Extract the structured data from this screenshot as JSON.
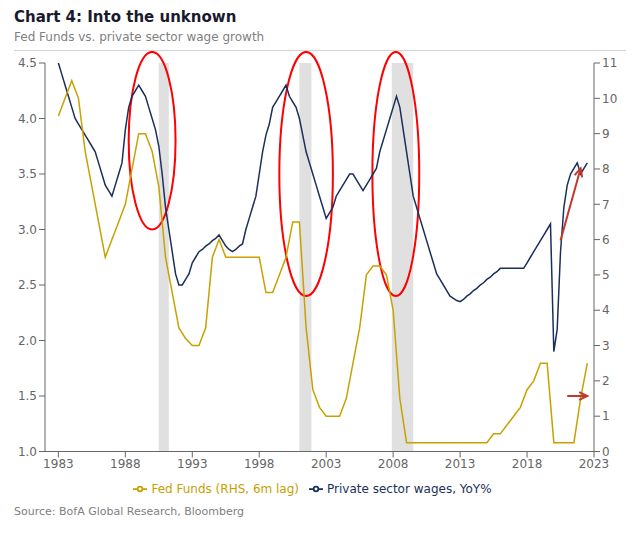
{
  "chart_data": {
    "type": "line",
    "title": "Chart 4: Into the unknown",
    "subtitle": "Fed Funds vs. private sector wage growth",
    "source": "Source: BofA Global Research, Bloomberg",
    "grid": false,
    "xlim": [
      1982,
      2023
    ],
    "xticks": [
      1983,
      1988,
      1993,
      1998,
      2003,
      2008,
      2013,
      2018,
      2023
    ],
    "ylim": [
      1.0,
      4.5
    ],
    "yticks": [
      {
        "value": 1.0,
        "label": "1.0"
      },
      1.5,
      {
        "value": 2.0,
        "label": "2.0"
      },
      2.5,
      {
        "value": 3.0,
        "label": "3.0"
      },
      3.5,
      {
        "value": 4.0,
        "label": "4.0"
      },
      4.5
    ],
    "y2lim": [
      0,
      11
    ],
    "y2ticks": [
      0,
      1,
      2,
      3,
      4,
      5,
      6,
      7,
      8,
      9,
      10,
      11
    ],
    "recession_bands": {
      "color": "lightgray",
      "ranges": [
        [
          1990.5,
          1991.25
        ],
        [
          2001.0,
          2001.9
        ],
        [
          2007.9,
          2009.5
        ]
      ]
    },
    "highlights": {
      "color": "red",
      "ellipses": [
        {
          "x": 1990.0,
          "y": 3.8,
          "width": 3.5,
          "height": 1.6
        },
        {
          "x": 2001.5,
          "y": 3.5,
          "width": 4.0,
          "height": 2.2
        },
        {
          "x": 2008.2,
          "y": 3.5,
          "width": 3.5,
          "height": 2.2
        }
      ]
    },
    "arrows": {
      "color": "#c0392b",
      "segments": [
        {
          "from": [
            2020.5,
            2.9
          ],
          "to": [
            2022.0,
            3.55
          ]
        },
        {
          "from": [
            2021.0,
            1.5
          ],
          "to": [
            2022.5,
            1.5
          ]
        }
      ]
    },
    "series": [
      {
        "name": "Private sector wages, YoY%",
        "color": "#1a2f5a",
        "axis": "y",
        "x": [
          1983,
          1983.25,
          1983.5,
          1983.75,
          1984,
          1984.25,
          1984.5,
          1984.75,
          1985,
          1985.25,
          1985.5,
          1985.75,
          1986,
          1986.25,
          1986.5,
          1986.75,
          1987,
          1987.25,
          1987.5,
          1987.75,
          1988,
          1988.25,
          1988.5,
          1988.75,
          1989,
          1989.25,
          1989.5,
          1989.75,
          1990,
          1990.25,
          1990.5,
          1990.75,
          1991,
          1991.25,
          1991.5,
          1991.75,
          1992,
          1992.25,
          1992.5,
          1992.75,
          1993,
          1993.25,
          1993.5,
          1993.75,
          1994,
          1994.25,
          1994.5,
          1994.75,
          1995,
          1995.25,
          1995.5,
          1995.75,
          1996,
          1996.25,
          1996.5,
          1996.75,
          1997,
          1997.25,
          1997.5,
          1997.75,
          1998,
          1998.25,
          1998.5,
          1998.75,
          1999,
          1999.25,
          1999.5,
          1999.75,
          2000,
          2000.25,
          2000.5,
          2000.75,
          2001,
          2001.25,
          2001.5,
          2001.75,
          2002,
          2002.25,
          2002.5,
          2002.75,
          2003,
          2003.25,
          2003.5,
          2003.75,
          2004,
          2004.25,
          2004.5,
          2004.75,
          2005,
          2005.25,
          2005.5,
          2005.75,
          2006,
          2006.25,
          2006.5,
          2006.75,
          2007,
          2007.25,
          2007.5,
          2007.75,
          2008,
          2008.25,
          2008.5,
          2008.75,
          2009,
          2009.25,
          2009.5,
          2009.75,
          2010,
          2010.25,
          2010.5,
          2010.75,
          2011,
          2011.25,
          2011.5,
          2011.75,
          2012,
          2012.25,
          2012.5,
          2012.75,
          2013,
          2013.25,
          2013.5,
          2013.75,
          2014,
          2014.25,
          2014.5,
          2014.75,
          2015,
          2015.25,
          2015.5,
          2015.75,
          2016,
          2016.25,
          2016.5,
          2016.75,
          2017,
          2017.25,
          2017.5,
          2017.75,
          2018,
          2018.25,
          2018.5,
          2018.75,
          2019,
          2019.25,
          2019.5,
          2019.75,
          2020,
          2020.25,
          2020.5,
          2020.75,
          2021,
          2021.25,
          2021.5,
          2021.75,
          2022,
          2022.25,
          2022.5
        ],
        "values": [
          4.5,
          4.4,
          4.3,
          4.2,
          4.1,
          4.0,
          3.95,
          3.9,
          3.85,
          3.8,
          3.75,
          3.7,
          3.6,
          3.5,
          3.4,
          3.35,
          3.3,
          3.4,
          3.5,
          3.6,
          3.9,
          4.1,
          4.2,
          4.25,
          4.3,
          4.25,
          4.2,
          4.1,
          4.0,
          3.9,
          3.75,
          3.5,
          3.2,
          3.0,
          2.8,
          2.6,
          2.5,
          2.5,
          2.55,
          2.6,
          2.7,
          2.75,
          2.8,
          2.82,
          2.85,
          2.87,
          2.9,
          2.92,
          2.95,
          2.9,
          2.85,
          2.82,
          2.8,
          2.82,
          2.85,
          2.87,
          3.0,
          3.1,
          3.2,
          3.3,
          3.5,
          3.7,
          3.85,
          3.95,
          4.1,
          4.15,
          4.2,
          4.25,
          4.3,
          4.2,
          4.15,
          4.1,
          4.0,
          3.85,
          3.7,
          3.6,
          3.5,
          3.4,
          3.3,
          3.2,
          3.1,
          3.15,
          3.2,
          3.3,
          3.35,
          3.4,
          3.45,
          3.5,
          3.5,
          3.45,
          3.4,
          3.35,
          3.4,
          3.45,
          3.5,
          3.55,
          3.7,
          3.8,
          3.9,
          4.0,
          4.1,
          4.2,
          4.1,
          3.9,
          3.7,
          3.5,
          3.3,
          3.2,
          3.1,
          3.0,
          2.9,
          2.8,
          2.7,
          2.6,
          2.55,
          2.5,
          2.45,
          2.4,
          2.38,
          2.36,
          2.35,
          2.37,
          2.4,
          2.42,
          2.45,
          2.47,
          2.5,
          2.52,
          2.55,
          2.57,
          2.6,
          2.62,
          2.65,
          2.65,
          2.65,
          2.65,
          2.65,
          2.65,
          2.65,
          2.65,
          2.7,
          2.75,
          2.8,
          2.85,
          2.9,
          2.95,
          3.0,
          3.05,
          1.9,
          2.1,
          2.8,
          3.2,
          3.4,
          3.5,
          3.55,
          3.6,
          3.5,
          3.55,
          3.6
        ]
      },
      {
        "name": "Fed Funds (RHS, 6m lag)",
        "color": "#c8a000",
        "axis": "y2",
        "x": [
          1983,
          1983.5,
          1984,
          1984.5,
          1985,
          1985.5,
          1986,
          1986.5,
          1987,
          1987.5,
          1988,
          1988.5,
          1989,
          1989.5,
          1990,
          1990.5,
          1991,
          1991.5,
          1992,
          1992.5,
          1993,
          1993.5,
          1994,
          1994.5,
          1995,
          1995.5,
          1996,
          1996.5,
          1997,
          1997.5,
          1998,
          1998.5,
          1999,
          1999.5,
          2000,
          2000.5,
          2001,
          2001.5,
          2002,
          2002.5,
          2003,
          2003.5,
          2004,
          2004.5,
          2005,
          2005.5,
          2006,
          2006.5,
          2007,
          2007.5,
          2008,
          2008.5,
          2009,
          2009.5,
          2010,
          2010.5,
          2011,
          2011.5,
          2012,
          2012.5,
          2013,
          2013.5,
          2014,
          2014.5,
          2015,
          2015.5,
          2016,
          2016.5,
          2017,
          2017.5,
          2018,
          2018.5,
          2019,
          2019.5,
          2020,
          2020.5,
          2021,
          2021.5,
          2022,
          2022.5
        ],
        "values": [
          9.5,
          10.0,
          10.5,
          10.0,
          8.5,
          7.5,
          6.5,
          5.5,
          6.0,
          6.5,
          7.0,
          8.0,
          9.0,
          9.0,
          8.5,
          7.5,
          5.5,
          4.5,
          3.5,
          3.2,
          3.0,
          3.0,
          3.5,
          5.5,
          6.0,
          5.5,
          5.5,
          5.5,
          5.5,
          5.5,
          5.5,
          4.5,
          4.5,
          5.0,
          5.5,
          6.5,
          6.5,
          3.5,
          1.75,
          1.25,
          1.0,
          1.0,
          1.0,
          1.5,
          2.5,
          3.5,
          5.0,
          5.25,
          5.25,
          5.0,
          4.0,
          1.5,
          0.25,
          0.25,
          0.25,
          0.25,
          0.25,
          0.25,
          0.25,
          0.25,
          0.25,
          0.25,
          0.25,
          0.25,
          0.25,
          0.5,
          0.5,
          0.75,
          1.0,
          1.25,
          1.75,
          2.0,
          2.5,
          2.5,
          0.25,
          0.25,
          0.25,
          0.25,
          1.5,
          2.5
        ]
      }
    ]
  }
}
